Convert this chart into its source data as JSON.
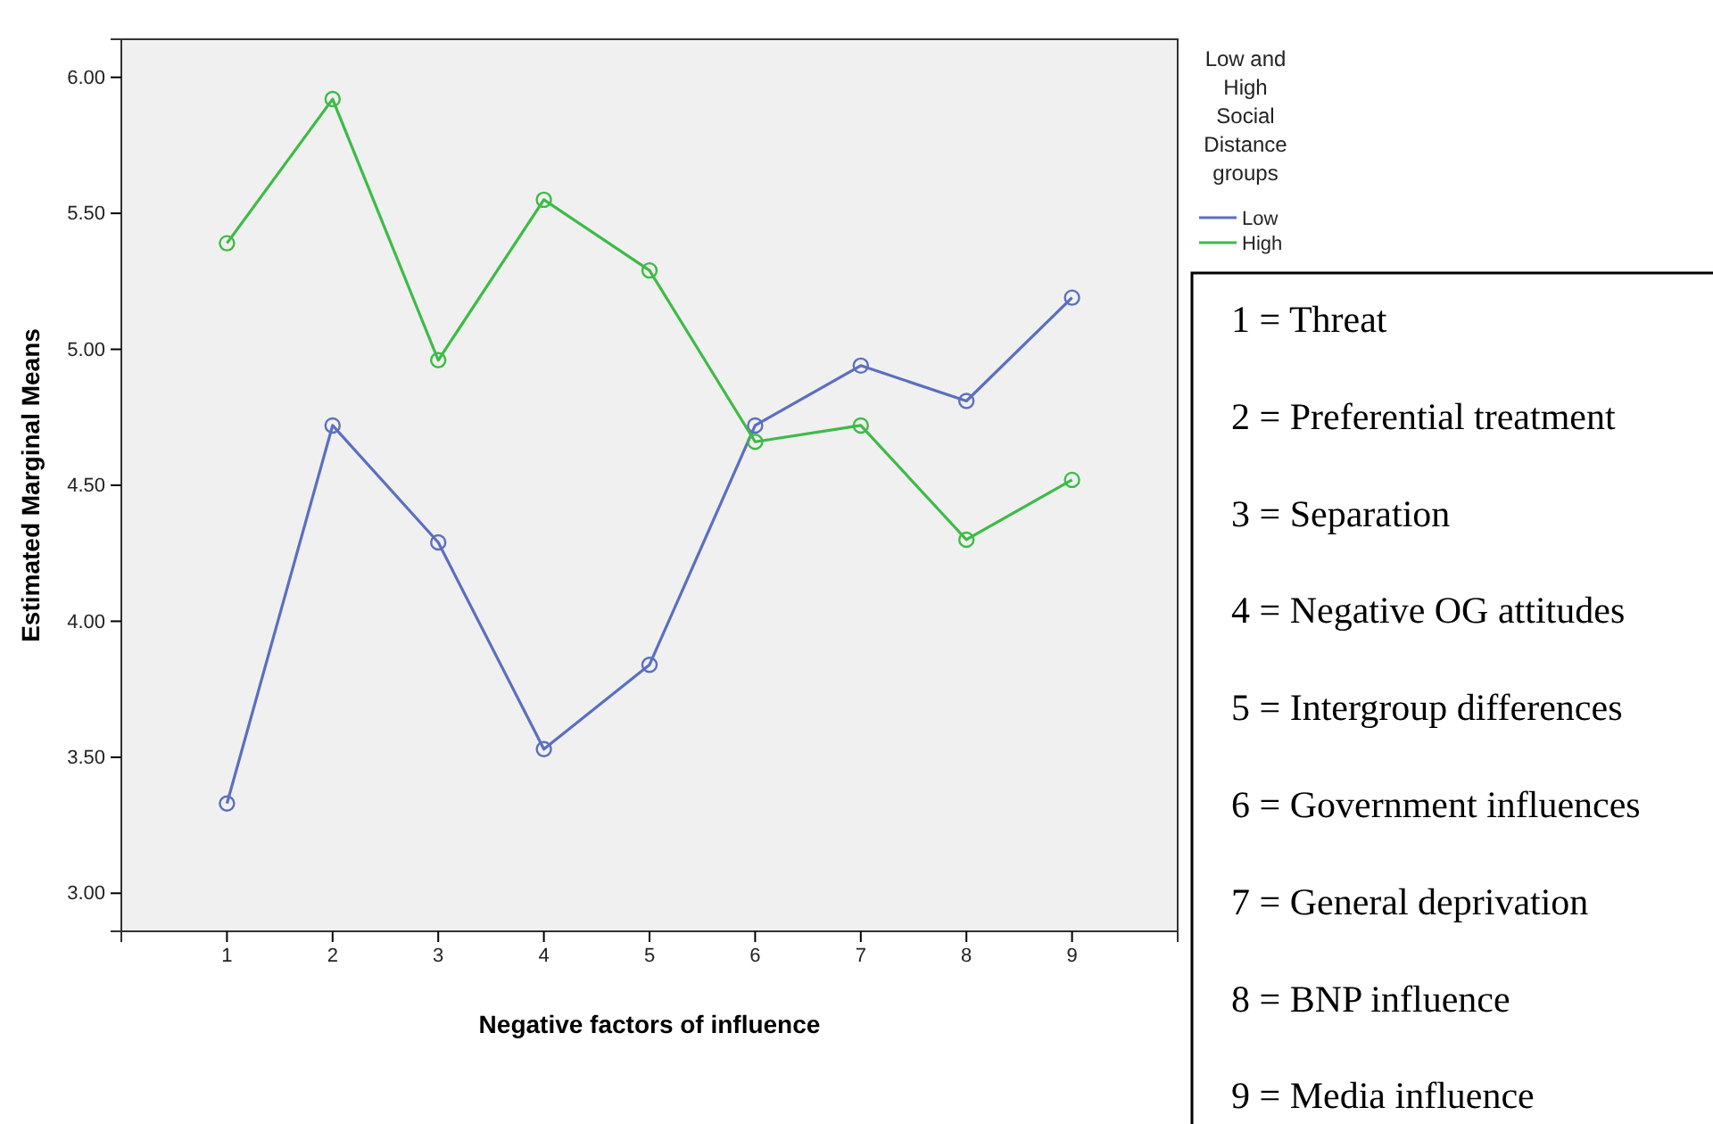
{
  "chart_data": {
    "type": "line",
    "xlabel": "Negative factors of influence",
    "ylabel": "Estimated Marginal Means",
    "legend_title": "Low and High Social Distance groups",
    "x": [
      1,
      2,
      3,
      4,
      5,
      6,
      7,
      8,
      9
    ],
    "series": [
      {
        "name": "Low",
        "color": "#5b6fbf",
        "values": [
          3.33,
          4.72,
          4.29,
          3.53,
          3.84,
          4.72,
          4.94,
          4.81,
          5.19
        ]
      },
      {
        "name": "High",
        "color": "#3dbb46",
        "values": [
          5.39,
          5.92,
          4.96,
          5.55,
          5.29,
          4.66,
          4.72,
          4.3,
          4.52
        ]
      }
    ],
    "xlim": [
      0,
      10
    ],
    "xticks": [
      1,
      2,
      3,
      4,
      5,
      6,
      7,
      8,
      9
    ],
    "ylim": [
      2.86,
      6.14
    ],
    "yticks": [
      {
        "value": 3,
        "label": "3.00"
      },
      {
        "value": 3.5,
        "label": "3.50"
      },
      {
        "value": 4,
        "label": "4.00"
      },
      {
        "value": 4.5,
        "label": "4.50"
      },
      {
        "value": 5,
        "label": "5.00"
      },
      {
        "value": 5.5,
        "label": "5.50"
      },
      {
        "value": 6,
        "label": "6.00"
      }
    ],
    "grid": false,
    "legend": "top right",
    "marker": "circle",
    "line_style": "solid",
    "annotations": [
      "1 = Threat",
      "2 = Preferential treatment",
      "3 = Separation",
      "4 = Negative OG attitudes",
      "5 = Intergroup differences",
      "6 = Government influences",
      "7 = General deprivation",
      "8 = BNP influence",
      "9 = Media influence"
    ]
  }
}
